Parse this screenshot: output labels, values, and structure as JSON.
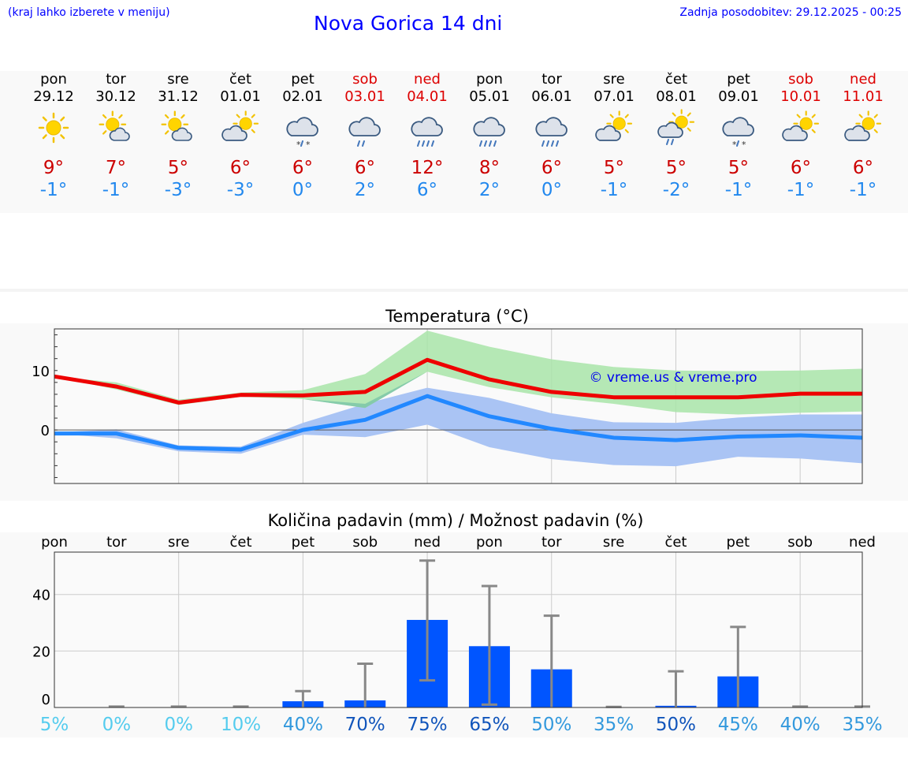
{
  "header": {
    "left_note": "(kraj lahko izberete v meniju)",
    "title": "Nova Gorica 14 dni",
    "updated": "Zadnja posodobitev: 29.12.2025 - 00:25"
  },
  "days": [
    {
      "name": "pon",
      "date": "29.12",
      "weekend": false,
      "icon": "sun-icon",
      "max": "9°",
      "min": "-1°"
    },
    {
      "name": "tor",
      "date": "30.12",
      "weekend": false,
      "icon": "sun-cloud-icon",
      "max": "7°",
      "min": "-1°"
    },
    {
      "name": "sre",
      "date": "31.12",
      "weekend": false,
      "icon": "sun-cloud-icon",
      "max": "5°",
      "min": "-3°"
    },
    {
      "name": "čet",
      "date": "01.01",
      "weekend": false,
      "icon": "cloud-sun-icon",
      "max": "6°",
      "min": "-3°"
    },
    {
      "name": "pet",
      "date": "02.01",
      "weekend": false,
      "icon": "cloud-snow-icon",
      "max": "6°",
      "min": "0°"
    },
    {
      "name": "sob",
      "date": "03.01",
      "weekend": true,
      "icon": "cloud-rain-icon",
      "max": "6°",
      "min": "2°"
    },
    {
      "name": "ned",
      "date": "04.01",
      "weekend": true,
      "icon": "cloud-heavy-rain-icon",
      "max": "12°",
      "min": "6°"
    },
    {
      "name": "pon",
      "date": "05.01",
      "weekend": false,
      "icon": "cloud-heavy-rain-icon",
      "max": "8°",
      "min": "2°"
    },
    {
      "name": "tor",
      "date": "06.01",
      "weekend": false,
      "icon": "cloud-heavy-rain-icon",
      "max": "6°",
      "min": "0°"
    },
    {
      "name": "sre",
      "date": "07.01",
      "weekend": false,
      "icon": "cloud-sun-icon",
      "max": "5°",
      "min": "-1°"
    },
    {
      "name": "čet",
      "date": "08.01",
      "weekend": false,
      "icon": "cloud-sun-rain-icon",
      "max": "5°",
      "min": "-2°"
    },
    {
      "name": "pet",
      "date": "09.01",
      "weekend": false,
      "icon": "cloud-snow-icon",
      "max": "5°",
      "min": "-1°"
    },
    {
      "name": "sob",
      "date": "10.01",
      "weekend": true,
      "icon": "cloud-sun-icon",
      "max": "6°",
      "min": "-1°"
    },
    {
      "name": "ned",
      "date": "11.01",
      "weekend": true,
      "icon": "cloud-sun-icon",
      "max": "6°",
      "min": "-1°"
    }
  ],
  "colors": {
    "max_line": "#ee0000",
    "min_line": "#2288ff",
    "max_band": "#a8e4a8",
    "min_band": "#aac4f4",
    "overlap_band": "#80c8a8",
    "precip_bar": "#0055ff",
    "error_bar": "#888888",
    "title_blue": "#0000ff",
    "weekend_red": "#dd0000"
  },
  "chart_data": [
    {
      "type": "line",
      "title": "Temperatura (°C)",
      "watermark": "© vreme.us & vreme.pro",
      "ylim": [
        -9,
        17
      ],
      "yticks": [
        0,
        10
      ],
      "x": [
        0,
        1,
        2,
        3,
        4,
        5,
        6,
        7,
        8,
        9,
        10,
        11,
        12,
        13
      ],
      "series": [
        {
          "name": "max",
          "values": [
            9,
            7.3,
            4.6,
            5.9,
            5.8,
            6.4,
            11.8,
            8.5,
            6.4,
            5.5,
            5.5,
            5.5,
            6.1,
            6.1
          ]
        },
        {
          "name": "min",
          "values": [
            -0.6,
            -0.6,
            -3.0,
            -3.3,
            0,
            1.7,
            5.7,
            2.3,
            0.2,
            -1.3,
            -1.7,
            -1.1,
            -0.9,
            -1.3
          ]
        }
      ],
      "bands": [
        {
          "name": "max_range",
          "low": [
            9,
            6.8,
            4.2,
            5.6,
            5.2,
            3.7,
            9.8,
            7.2,
            5.5,
            4.4,
            3.0,
            2.6,
            2.9,
            3.1
          ],
          "high": [
            9,
            8.0,
            5.1,
            6.3,
            6.7,
            9.4,
            16.7,
            14.0,
            11.9,
            10.6,
            10.0,
            9.9,
            10.0,
            10.3
          ]
        },
        {
          "name": "min_range",
          "low": [
            -0.6,
            -1.4,
            -3.6,
            -4.0,
            -0.8,
            -1.2,
            0.9,
            -2.9,
            -4.9,
            -5.9,
            -6.1,
            -4.5,
            -4.8,
            -5.6
          ],
          "high": [
            -0.4,
            0.1,
            -2.6,
            -2.8,
            1.2,
            4.4,
            7.1,
            5.4,
            2.8,
            1.3,
            1.2,
            2.1,
            2.6,
            2.6
          ]
        }
      ]
    },
    {
      "type": "bar",
      "title": "Količina padavin (mm) / Možnost padavin (%)",
      "categories": [
        "pon",
        "tor",
        "sre",
        "čet",
        "pet",
        "sob",
        "ned",
        "pon",
        "tor",
        "sre",
        "čet",
        "pet",
        "sob",
        "ned"
      ],
      "ylim": [
        0,
        55
      ],
      "yticks": [
        0,
        20,
        40
      ],
      "values": [
        0,
        0,
        0,
        0,
        2.2,
        2.5,
        31,
        21.7,
        13.5,
        0,
        0.6,
        11,
        0,
        0
      ],
      "error_high": [
        0,
        0.3,
        0.3,
        0.3,
        5.8,
        15.5,
        52,
        43,
        32.5,
        0.2,
        12.8,
        28.5,
        0.3,
        0.3
      ],
      "error_low": [
        0,
        0,
        0,
        0,
        0,
        0,
        9.6,
        1.0,
        0,
        0,
        0,
        0,
        0,
        0
      ],
      "probabilities": [
        "5%",
        "0%",
        "0%",
        "10%",
        "40%",
        "70%",
        "75%",
        "65%",
        "50%",
        "35%",
        "50%",
        "45%",
        "40%",
        "35%"
      ],
      "probability_colors": [
        "#55ccee",
        "#55ccee",
        "#55ccee",
        "#55ccee",
        "#3399dd",
        "#1155bb",
        "#1155bb",
        "#1155bb",
        "#3399dd",
        "#3399dd",
        "#1155bb",
        "#3399dd",
        "#3399dd",
        "#3399dd"
      ]
    }
  ]
}
